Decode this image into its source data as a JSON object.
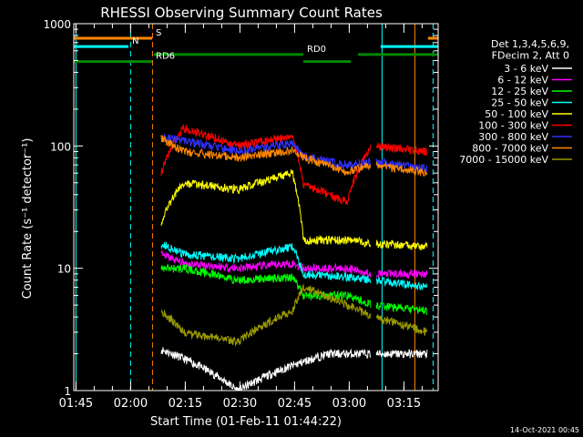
{
  "chart_data": {
    "type": "line",
    "title": "RHESSI Observing Summary Count Rates",
    "xlabel": "Start Time (01-Feb-11 01:44:22)",
    "ylabel": "Count Rate (s⁻¹ detector⁻¹)",
    "y_scale": "log",
    "ylim": [
      1,
      1000
    ],
    "xlim_minutes": [
      0,
      100
    ],
    "y_ticks": [
      {
        "value": 1,
        "label": "1"
      },
      {
        "value": 10,
        "label": "10"
      },
      {
        "value": 100,
        "label": "100"
      },
      {
        "value": 1000,
        "label": "1000"
      }
    ],
    "x_ticks": [
      {
        "minute": 0.6,
        "label": "01:45"
      },
      {
        "minute": 15.6,
        "label": "02:00"
      },
      {
        "minute": 30.6,
        "label": "02:15"
      },
      {
        "minute": 45.6,
        "label": "02:30"
      },
      {
        "minute": 60.6,
        "label": "02:45"
      },
      {
        "minute": 75.6,
        "label": "03:00"
      },
      {
        "minute": 90.6,
        "label": "03:15"
      }
    ],
    "legend_header": [
      "Det 1,3,4,5,6,9,",
      "FDecim 2, Att 0"
    ],
    "series": [
      {
        "name": "3 - 6 keV",
        "color": "#ffffff",
        "base": 1.2,
        "curve": [
          [
            18,
            2.5
          ],
          [
            45,
            1.0
          ],
          [
            70,
            2.0
          ],
          [
            95,
            2.0
          ]
        ]
      },
      {
        "name": "6 - 12 keV",
        "color": "#ff00ff",
        "base": 12,
        "curve": [
          [
            24,
            13
          ],
          [
            30,
            11
          ],
          [
            45,
            10
          ],
          [
            60,
            11
          ],
          [
            63,
            10
          ],
          [
            75,
            10
          ],
          [
            82,
            9
          ],
          [
            97,
            9
          ]
        ]
      },
      {
        "name": "12 - 25 keV",
        "color": "#00ff00",
        "base": 8.5,
        "curve": [
          [
            24,
            10
          ],
          [
            30,
            10
          ],
          [
            45,
            8
          ],
          [
            60,
            8.5
          ],
          [
            63,
            6
          ],
          [
            75,
            6
          ],
          [
            82,
            5
          ],
          [
            97,
            4.5
          ]
        ]
      },
      {
        "name": "25 - 50 keV",
        "color": "#00ffff",
        "base": 14,
        "curve": [
          [
            24,
            16
          ],
          [
            30,
            13
          ],
          [
            45,
            12
          ],
          [
            60,
            15
          ],
          [
            63,
            9
          ],
          [
            75,
            8.5
          ],
          [
            82,
            8
          ],
          [
            97,
            7
          ]
        ]
      },
      {
        "name": "50 - 100 keV",
        "color": "#ffff00",
        "base": 22,
        "curve": [
          [
            24,
            24
          ],
          [
            30,
            50
          ],
          [
            45,
            44
          ],
          [
            60,
            60
          ],
          [
            63,
            17
          ],
          [
            75,
            17
          ],
          [
            82,
            16
          ],
          [
            97,
            15
          ]
        ]
      },
      {
        "name": "100 - 300 keV",
        "color": "#ff0000",
        "base": 55,
        "curve": [
          [
            24,
            60
          ],
          [
            30,
            140
          ],
          [
            45,
            100
          ],
          [
            60,
            120
          ],
          [
            63,
            48
          ],
          [
            75,
            35
          ],
          [
            82,
            100
          ],
          [
            97,
            90
          ]
        ]
      },
      {
        "name": "300 - 800 keV",
        "color": "#3030ff",
        "base": 110,
        "curve": [
          [
            24,
            120
          ],
          [
            30,
            110
          ],
          [
            45,
            90
          ],
          [
            60,
            105
          ],
          [
            63,
            82
          ],
          [
            75,
            70
          ],
          [
            82,
            75
          ],
          [
            97,
            65
          ]
        ]
      },
      {
        "name": "800 - 7000 keV",
        "color": "#ff8800",
        "base": 105,
        "curve": [
          [
            24,
            115
          ],
          [
            30,
            90
          ],
          [
            45,
            80
          ],
          [
            60,
            92
          ],
          [
            63,
            80
          ],
          [
            75,
            62
          ],
          [
            82,
            70
          ],
          [
            97,
            60
          ]
        ]
      },
      {
        "name": "7000 - 15000 keV",
        "color": "#999900",
        "base": 4,
        "curve": [
          [
            24,
            4.5
          ],
          [
            30,
            3
          ],
          [
            45,
            2.5
          ],
          [
            60,
            4.5
          ],
          [
            63,
            7
          ],
          [
            75,
            5
          ],
          [
            82,
            4
          ],
          [
            97,
            3
          ]
        ]
      }
    ],
    "flags": [
      {
        "label": "S",
        "color": "#ff8800",
        "y": 760,
        "segments": [
          [
            0,
            21.5
          ],
          [
            97.2,
            100
          ]
        ]
      },
      {
        "label": "N",
        "color": "#00ffff",
        "y": 650,
        "segments": [
          [
            0,
            15
          ],
          [
            84.2,
            100
          ]
        ]
      },
      {
        "label": "RD0",
        "color": "#008800",
        "y": 560,
        "segments": [
          [
            22,
            63
          ],
          [
            78,
            100
          ]
        ]
      },
      {
        "label": "RD6",
        "color": "#008800",
        "y": 490,
        "segments": [
          [
            0,
            21.5
          ],
          [
            63,
            76
          ]
        ]
      }
    ],
    "vlines": [
      {
        "minute": 0.6,
        "color": "#00ffff",
        "style": "solid"
      },
      {
        "minute": 15.6,
        "color": "#00ffff",
        "style": "dash"
      },
      {
        "minute": 21.6,
        "color": "#ff8800",
        "style": "dash"
      },
      {
        "minute": 84.6,
        "color": "#00ffff",
        "style": "solid"
      },
      {
        "minute": 93.6,
        "color": "#ff8800",
        "style": "solid"
      },
      {
        "minute": 98.6,
        "color": "#00ffff",
        "style": "dash"
      }
    ],
    "data_window_minutes": [
      24,
      97
    ],
    "saa_gap_minutes": [
      81.5,
      83
    ]
  },
  "footer_date": "14-Oct-2021 00:45"
}
